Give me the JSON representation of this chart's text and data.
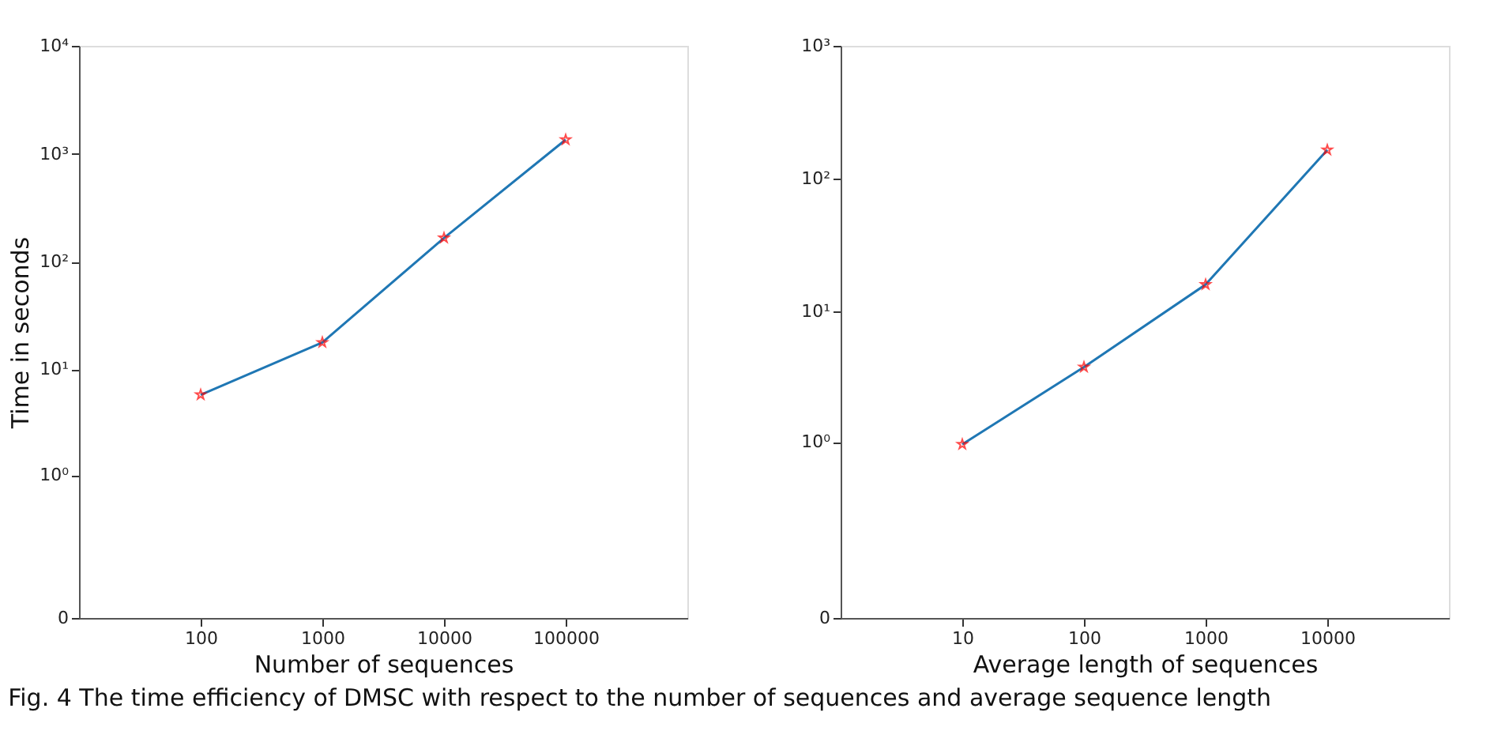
{
  "chart_data": [
    {
      "type": "line",
      "ylabel": "Time in seconds",
      "xlabel": "Number of sequences",
      "log": "xy",
      "marker": "star",
      "line_style": "solid",
      "grid": false,
      "x": [
        100,
        1000,
        10000,
        100000
      ],
      "series": [
        {
          "color": "#1f77b4",
          "colors": [
            "#ff0000",
            "#ff0000",
            "#ff0000",
            "#ff0000"
          ],
          "values": [
            5.8,
            17.8,
            166,
            1350
          ]
        }
      ],
      "xlim": [
        10,
        1000000
      ],
      "xticks": [
        100,
        1000,
        10000,
        100000
      ],
      "ylim": [
        0,
        10000
      ],
      "yticks": [
        0,
        {
          "value": 1,
          "label": "10⁰"
        },
        {
          "value": 10,
          "label": "10¹"
        },
        {
          "value": 100,
          "label": "10²"
        },
        {
          "value": 1000,
          "label": "10³"
        },
        {
          "value": 10000,
          "label": "10⁴"
        }
      ]
    },
    {
      "type": "line",
      "xlabel": "Average length of sequences",
      "log": "xy",
      "marker": "star",
      "line_style": "solid",
      "grid": false,
      "x": [
        10,
        100,
        1000,
        10000
      ],
      "series": [
        {
          "color": "#1f77b4",
          "colors": [
            "#ff0000",
            "#ff0000",
            "#ff0000",
            "#ff0000"
          ],
          "values": [
            0.96,
            3.8,
            16,
            165
          ]
        }
      ],
      "xlim": [
        1,
        100000
      ],
      "xticks": [
        10,
        100,
        1000,
        10000
      ],
      "ylim": [
        0,
        1000
      ],
      "yticks": [
        0,
        {
          "value": 1,
          "label": "10⁰"
        },
        {
          "value": 10,
          "label": "10¹"
        },
        {
          "value": 100,
          "label": "10²"
        },
        {
          "value": 1000,
          "label": "10³"
        }
      ],
      "annotations": [
        "Fig. 4  The time efficiency of DMSC with respect to the number of sequences and average sequence length"
      ]
    }
  ]
}
